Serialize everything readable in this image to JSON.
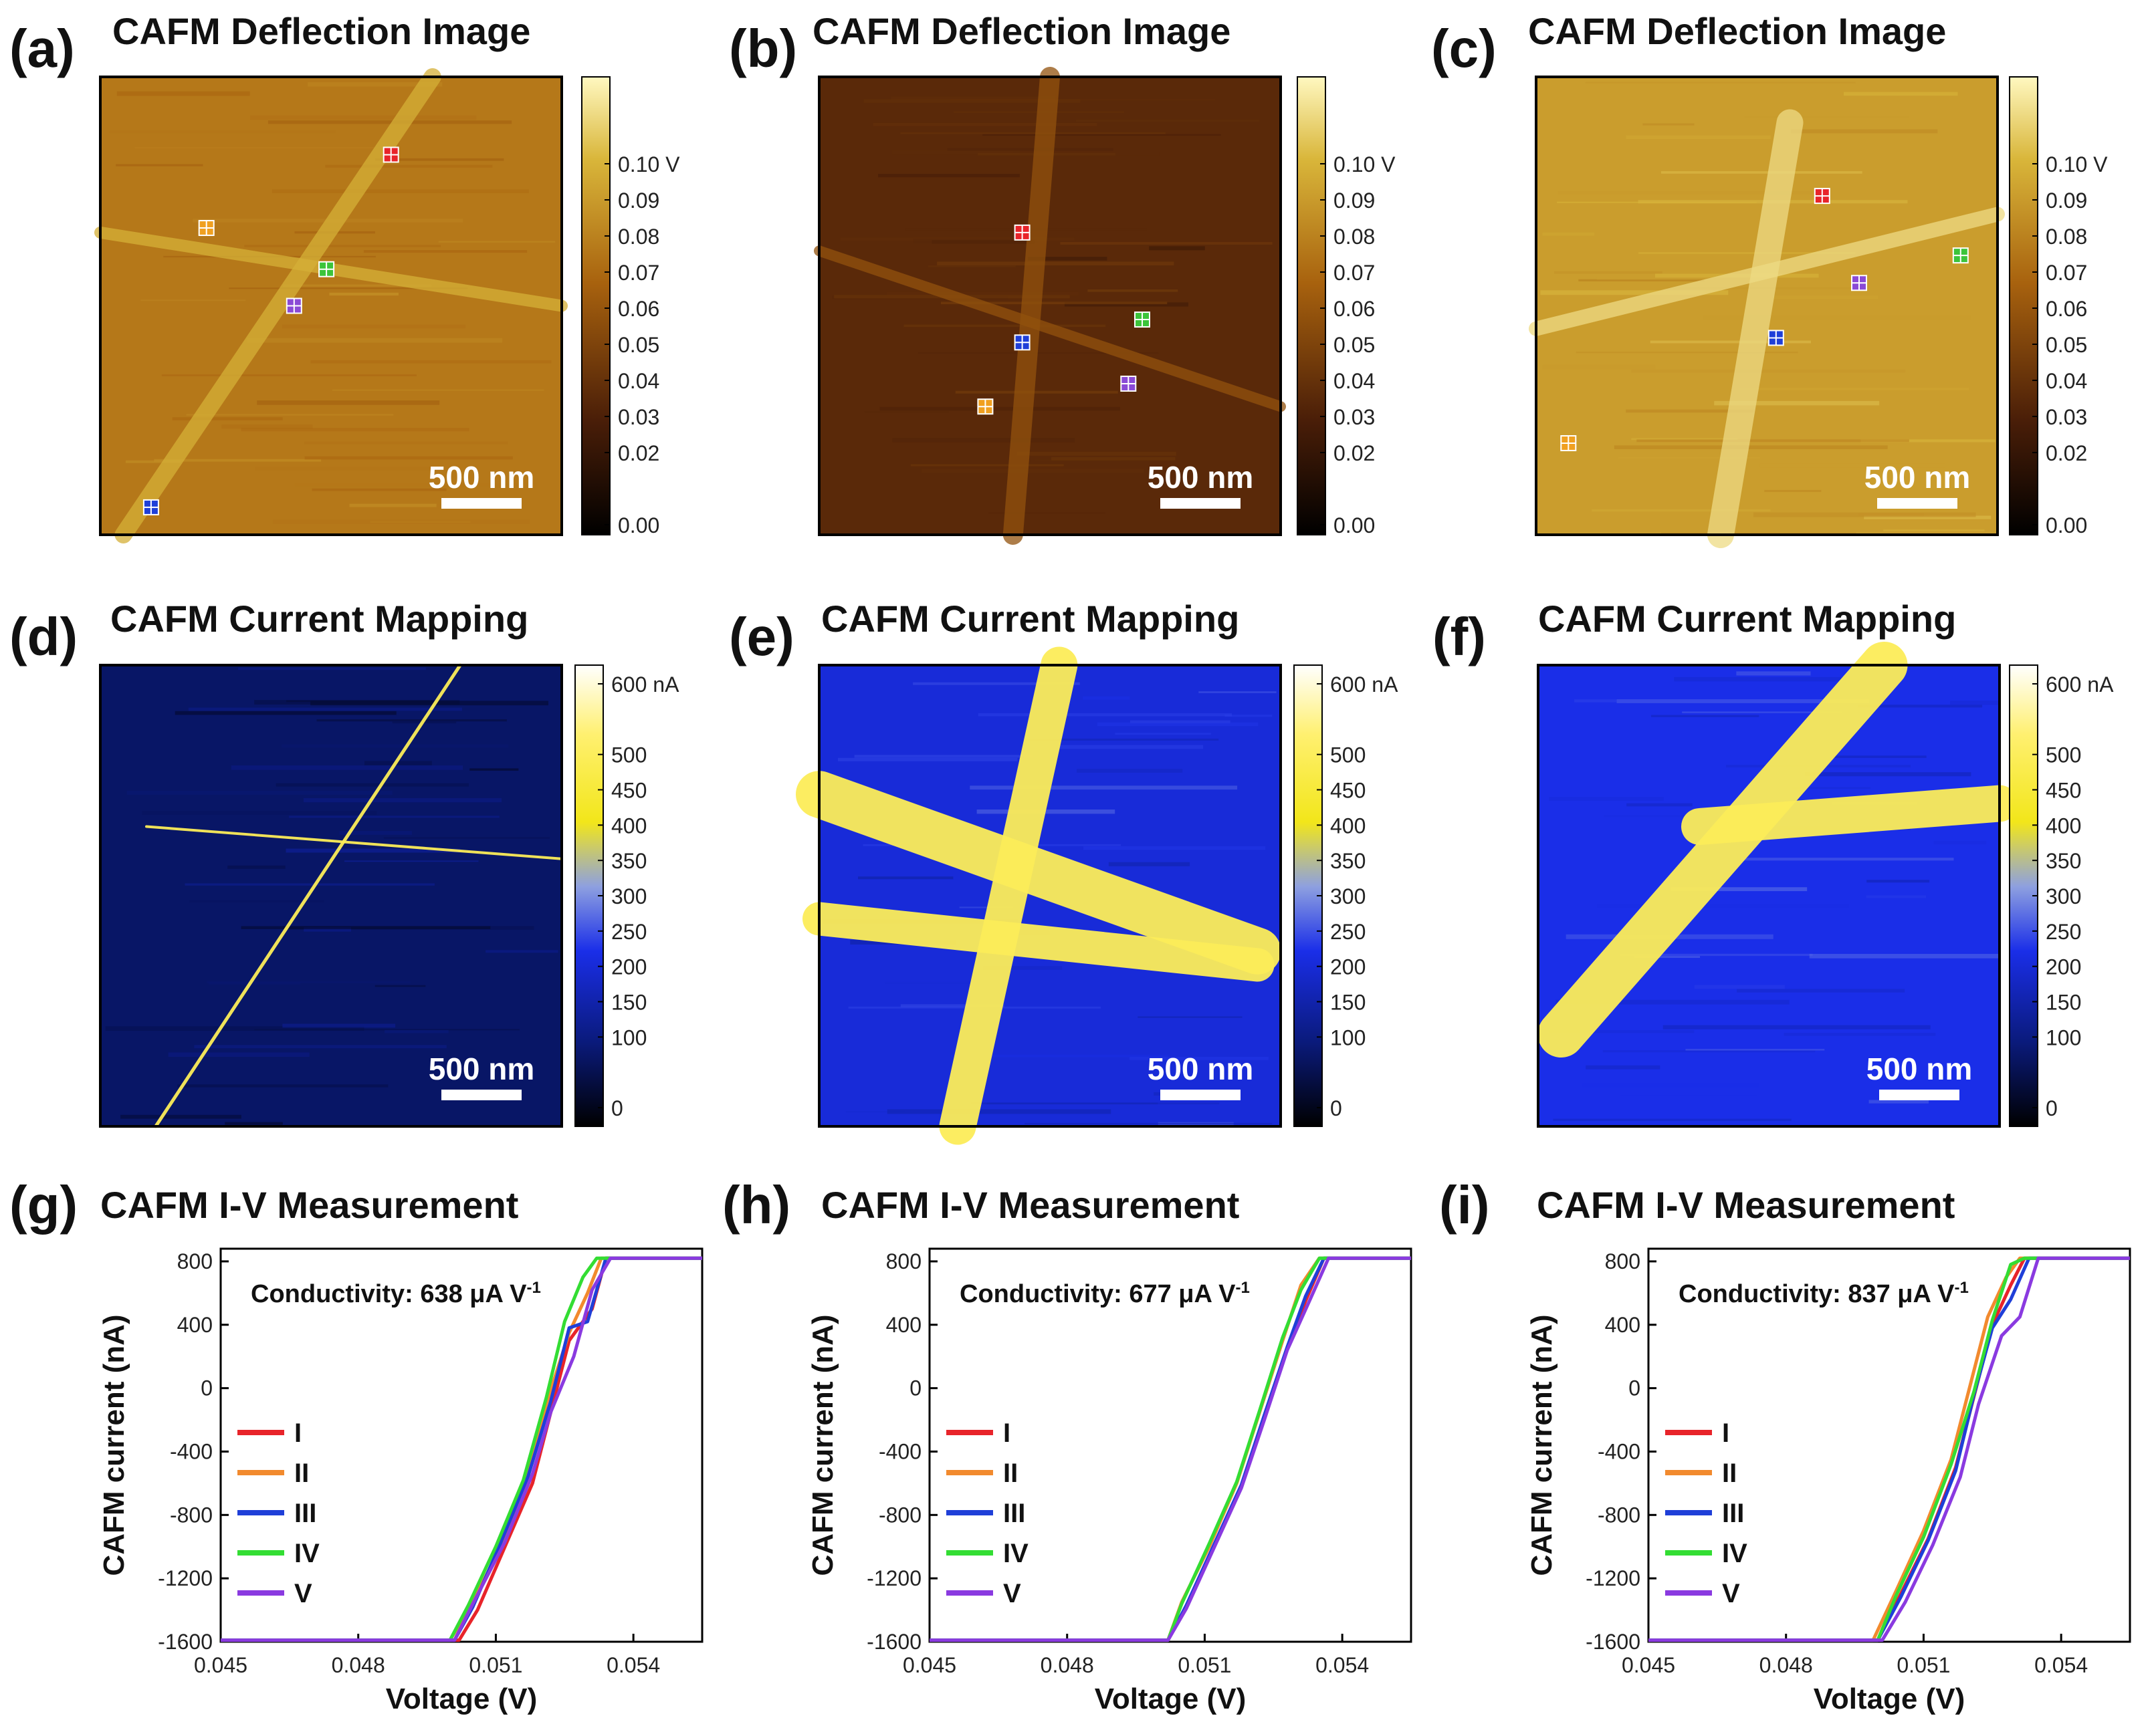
{
  "chart_data": [
    {
      "panel": "(a)",
      "type": "heatmap",
      "title": "CAFM Deflection Image",
      "colormap": "copper-gold",
      "image_tone": 0.62,
      "colorbar": {
        "labels": [
          "0.10 V",
          "0.09",
          "0.08",
          "0.07",
          "0.06",
          "0.05",
          "0.04",
          "0.03",
          "0.02",
          "0.00"
        ],
        "values": [
          0.1,
          0.09,
          0.08,
          0.07,
          0.06,
          0.05,
          0.04,
          0.03,
          0.02,
          0.0
        ],
        "range": [
          0.0,
          0.1
        ]
      },
      "scale_bar": "500 nm",
      "markers": [
        {
          "color": "#e8242a",
          "x": 0.63,
          "y": 0.17
        },
        {
          "color": "#f0a020",
          "x": 0.23,
          "y": 0.33
        },
        {
          "color": "#3cc43a",
          "x": 0.49,
          "y": 0.42
        },
        {
          "color": "#8a4ad6",
          "x": 0.42,
          "y": 0.5
        },
        {
          "color": "#1f3fd8",
          "x": 0.11,
          "y": 0.94
        }
      ]
    },
    {
      "panel": "(b)",
      "type": "heatmap",
      "title": "CAFM Deflection Image",
      "colormap": "copper-gold",
      "image_tone": 0.3,
      "colorbar": {
        "labels": [
          "0.10 V",
          "0.09",
          "0.08",
          "0.07",
          "0.06",
          "0.05",
          "0.04",
          "0.03",
          "0.02",
          "0.00"
        ],
        "values": [
          0.1,
          0.09,
          0.08,
          0.07,
          0.06,
          0.05,
          0.04,
          0.03,
          0.02,
          0.0
        ],
        "range": [
          0.0,
          0.1
        ]
      },
      "scale_bar": "500 nm",
      "markers": [
        {
          "color": "#e8242a",
          "x": 0.44,
          "y": 0.34
        },
        {
          "color": "#3cc43a",
          "x": 0.7,
          "y": 0.53
        },
        {
          "color": "#1f3fd8",
          "x": 0.44,
          "y": 0.58
        },
        {
          "color": "#8a4ad6",
          "x": 0.67,
          "y": 0.67
        },
        {
          "color": "#f0a020",
          "x": 0.36,
          "y": 0.72
        }
      ]
    },
    {
      "panel": "(c)",
      "type": "heatmap",
      "title": "CAFM Deflection Image",
      "colormap": "copper-gold",
      "image_tone": 0.74,
      "colorbar": {
        "labels": [
          "0.10 V",
          "0.09",
          "0.08",
          "0.07",
          "0.06",
          "0.05",
          "0.04",
          "0.03",
          "0.02",
          "0.00"
        ],
        "values": [
          0.1,
          0.09,
          0.08,
          0.07,
          0.06,
          0.05,
          0.04,
          0.03,
          0.02,
          0.0
        ],
        "range": [
          0.0,
          0.1
        ]
      },
      "scale_bar": "500 nm",
      "markers": [
        {
          "color": "#e8242a",
          "x": 0.62,
          "y": 0.26
        },
        {
          "color": "#3cc43a",
          "x": 0.92,
          "y": 0.39
        },
        {
          "color": "#8a4ad6",
          "x": 0.7,
          "y": 0.45
        },
        {
          "color": "#1f3fd8",
          "x": 0.52,
          "y": 0.57
        },
        {
          "color": "#f0a020",
          "x": 0.07,
          "y": 0.8
        }
      ]
    },
    {
      "panel": "(d)",
      "type": "heatmap",
      "title": "CAFM Current Mapping",
      "colormap": "black-blue-yellow-white",
      "image_tone": 0.15,
      "colorbar": {
        "labels": [
          "600 nA",
          "500",
          "450",
          "400",
          "350",
          "300",
          "250",
          "200",
          "150",
          "100",
          "0"
        ],
        "values": [
          600,
          500,
          450,
          400,
          350,
          300,
          250,
          200,
          150,
          100,
          0
        ],
        "range": [
          0,
          600
        ]
      },
      "scale_bar": "500 nm",
      "conductive_fraction": "sparse"
    },
    {
      "panel": "(e)",
      "type": "heatmap",
      "title": "CAFM Current Mapping",
      "colormap": "black-blue-yellow-white",
      "image_tone": 0.35,
      "colorbar": {
        "labels": [
          "600 nA",
          "500",
          "450",
          "400",
          "350",
          "300",
          "250",
          "200",
          "150",
          "100",
          "0"
        ],
        "values": [
          600,
          500,
          450,
          400,
          350,
          300,
          250,
          200,
          150,
          100,
          0
        ],
        "range": [
          0,
          600
        ]
      },
      "scale_bar": "500 nm",
      "conductive_fraction": "moderate"
    },
    {
      "panel": "(f)",
      "type": "heatmap",
      "title": "CAFM Current Mapping",
      "colormap": "black-blue-yellow-white",
      "image_tone": 0.38,
      "colorbar": {
        "labels": [
          "600 nA",
          "500",
          "450",
          "400",
          "350",
          "300",
          "250",
          "200",
          "150",
          "100",
          "0"
        ],
        "values": [
          600,
          500,
          450,
          400,
          350,
          300,
          250,
          200,
          150,
          100,
          0
        ],
        "range": [
          0,
          600
        ]
      },
      "scale_bar": "500 nm",
      "conductive_fraction": "dense"
    },
    {
      "panel": "(g)",
      "type": "line",
      "title": "CAFM I-V Measurement",
      "xlabel": "Voltage (V)",
      "ylabel": "CAFM current (nA)",
      "xlim": [
        0.045,
        0.0555
      ],
      "ylim": [
        -1600,
        880
      ],
      "xticks": [
        0.045,
        0.048,
        0.051,
        0.054
      ],
      "xtick_labels": [
        "0.045",
        "0.048",
        "0.051",
        "0.054"
      ],
      "yticks": [
        800,
        400,
        0,
        -400,
        -800,
        -1200,
        -1600
      ],
      "ytick_labels": [
        "800",
        "400",
        "0",
        "-400",
        "-800",
        "-1200",
        "-1600"
      ],
      "annotation": {
        "prefix": "Conductivity: 638 ",
        "unit": "μA V",
        "exponent": "-1"
      },
      "series": [
        {
          "name": "I",
          "color": "#e8242a",
          "x": [
            0.045,
            0.0502,
            0.0506,
            0.0512,
            0.0518,
            0.0522,
            0.0526,
            0.0531,
            0.0534,
            0.0555
          ],
          "y": [
            -1590,
            -1590,
            -1400,
            -1000,
            -600,
            -150,
            300,
            500,
            820,
            820
          ]
        },
        {
          "name": "II",
          "color": "#f28a2e",
          "x": [
            0.045,
            0.05,
            0.0505,
            0.0511,
            0.0517,
            0.0521,
            0.0526,
            0.053,
            0.0533,
            0.0555
          ],
          "y": [
            -1590,
            -1590,
            -1350,
            -1000,
            -550,
            -100,
            350,
            600,
            820,
            820
          ]
        },
        {
          "name": "III",
          "color": "#1f3fd8",
          "x": [
            0.045,
            0.0501,
            0.0505,
            0.0511,
            0.0517,
            0.0522,
            0.0526,
            0.053,
            0.0534,
            0.0555
          ],
          "y": [
            -1590,
            -1590,
            -1380,
            -980,
            -560,
            -80,
            380,
            420,
            820,
            820
          ]
        },
        {
          "name": "IV",
          "color": "#33dd33",
          "x": [
            0.045,
            0.05,
            0.0504,
            0.051,
            0.0516,
            0.0521,
            0.0525,
            0.0529,
            0.0532,
            0.0555
          ],
          "y": [
            -1590,
            -1590,
            -1370,
            -1000,
            -580,
            -60,
            420,
            700,
            820,
            820
          ]
        },
        {
          "name": "V",
          "color": "#8a3ae0",
          "x": [
            0.045,
            0.0501,
            0.0505,
            0.0512,
            0.0518,
            0.0522,
            0.0527,
            0.0531,
            0.0535,
            0.0555
          ],
          "y": [
            -1590,
            -1590,
            -1360,
            -970,
            -540,
            -150,
            200,
            620,
            820,
            820
          ]
        }
      ]
    },
    {
      "panel": "(h)",
      "type": "line",
      "title": "CAFM I-V Measurement",
      "xlabel": "Voltage (V)",
      "ylabel": "CAFM current (nA)",
      "xlim": [
        0.045,
        0.0555
      ],
      "ylim": [
        -1600,
        880
      ],
      "xticks": [
        0.045,
        0.048,
        0.051,
        0.054
      ],
      "xtick_labels": [
        "0.045",
        "0.048",
        "0.051",
        "0.054"
      ],
      "yticks": [
        800,
        400,
        0,
        -400,
        -800,
        -1200,
        -1600
      ],
      "ytick_labels": [
        "800",
        "400",
        "0",
        "-400",
        "-800",
        "-1200",
        "-1600"
      ],
      "annotation": {
        "prefix": "Conductivity: 677 ",
        "unit": "μA V",
        "exponent": "-1"
      },
      "series": [
        {
          "name": "I",
          "color": "#e8242a",
          "x": [
            0.045,
            0.0502,
            0.0506,
            0.0512,
            0.0518,
            0.0523,
            0.0528,
            0.0532,
            0.0536,
            0.0555
          ],
          "y": [
            -1590,
            -1590,
            -1380,
            -1000,
            -620,
            -180,
            250,
            550,
            820,
            820
          ]
        },
        {
          "name": "II",
          "color": "#f28a2e",
          "x": [
            0.045,
            0.0502,
            0.0505,
            0.0511,
            0.0517,
            0.0522,
            0.0527,
            0.0531,
            0.0535,
            0.0555
          ],
          "y": [
            -1590,
            -1590,
            -1350,
            -1000,
            -600,
            -150,
            300,
            650,
            820,
            820
          ]
        },
        {
          "name": "III",
          "color": "#1f3fd8",
          "x": [
            0.045,
            0.0502,
            0.0506,
            0.0512,
            0.0518,
            0.0523,
            0.0528,
            0.0532,
            0.0536,
            0.0555
          ],
          "y": [
            -1590,
            -1590,
            -1370,
            -990,
            -610,
            -170,
            260,
            580,
            820,
            820
          ]
        },
        {
          "name": "IV",
          "color": "#33dd33",
          "x": [
            0.045,
            0.0502,
            0.0505,
            0.0511,
            0.0517,
            0.0522,
            0.0527,
            0.0531,
            0.0535,
            0.0555
          ],
          "y": [
            -1590,
            -1590,
            -1360,
            -980,
            -590,
            -140,
            320,
            620,
            820,
            820
          ]
        },
        {
          "name": "V",
          "color": "#8a3ae0",
          "x": [
            0.045,
            0.0502,
            0.0506,
            0.0512,
            0.0518,
            0.0523,
            0.0528,
            0.0533,
            0.0537,
            0.0555
          ],
          "y": [
            -1590,
            -1590,
            -1390,
            -1010,
            -630,
            -200,
            240,
            560,
            820,
            820
          ]
        }
      ]
    },
    {
      "panel": "(i)",
      "type": "line",
      "title": "CAFM I-V Measurement",
      "xlabel": "Voltage (V)",
      "ylabel": "CAFM current (nA)",
      "xlim": [
        0.045,
        0.0555
      ],
      "ylim": [
        -1600,
        880
      ],
      "xticks": [
        0.045,
        0.048,
        0.051,
        0.054
      ],
      "xtick_labels": [
        "0.045",
        "0.048",
        "0.051",
        "0.054"
      ],
      "yticks": [
        800,
        400,
        0,
        -400,
        -800,
        -1200,
        -1600
      ],
      "ytick_labels": [
        "800",
        "400",
        "0",
        "-400",
        "-800",
        "-1200",
        "-1600"
      ],
      "annotation": {
        "prefix": "Conductivity: 837 ",
        "unit": "μA V",
        "exponent": "-1"
      },
      "series": [
        {
          "name": "I",
          "color": "#e8242a",
          "x": [
            0.045,
            0.05,
            0.0505,
            0.0511,
            0.0517,
            0.0521,
            0.0525,
            0.0529,
            0.0532,
            0.0555
          ],
          "y": [
            -1590,
            -1590,
            -1300,
            -950,
            -500,
            -50,
            400,
            650,
            820,
            820
          ]
        },
        {
          "name": "II",
          "color": "#f28a2e",
          "x": [
            0.045,
            0.0499,
            0.0504,
            0.051,
            0.0516,
            0.052,
            0.0524,
            0.0528,
            0.0531,
            0.0555
          ],
          "y": [
            -1590,
            -1590,
            -1280,
            -900,
            -450,
            0,
            450,
            700,
            820,
            820
          ]
        },
        {
          "name": "III",
          "color": "#1f3fd8",
          "x": [
            0.045,
            0.05,
            0.0505,
            0.0511,
            0.0517,
            0.0521,
            0.0525,
            0.0529,
            0.0533,
            0.0555
          ],
          "y": [
            -1590,
            -1590,
            -1320,
            -960,
            -520,
            -40,
            380,
            560,
            820,
            820
          ]
        },
        {
          "name": "IV",
          "color": "#33dd33",
          "x": [
            0.045,
            0.05,
            0.0504,
            0.051,
            0.0516,
            0.0521,
            0.0525,
            0.0529,
            0.0532,
            0.0555
          ],
          "y": [
            -1590,
            -1590,
            -1310,
            -940,
            -480,
            -20,
            430,
            780,
            820,
            820
          ]
        },
        {
          "name": "V",
          "color": "#8a3ae0",
          "x": [
            0.045,
            0.0501,
            0.0506,
            0.0512,
            0.0518,
            0.0522,
            0.0527,
            0.0531,
            0.0535,
            0.0555
          ],
          "y": [
            -1590,
            -1590,
            -1350,
            -990,
            -560,
            -100,
            330,
            450,
            820,
            820
          ]
        }
      ]
    }
  ]
}
